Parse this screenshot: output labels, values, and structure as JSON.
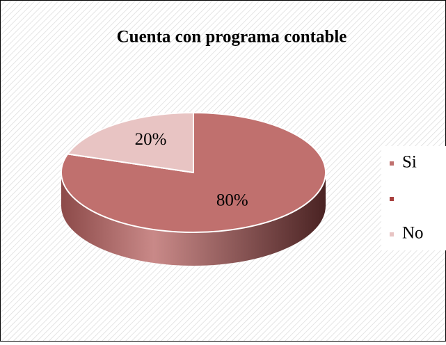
{
  "chart_data": {
    "type": "pie",
    "title": "Cuenta con programa contable",
    "categories": [
      "Si",
      null,
      "No"
    ],
    "values": [
      80,
      0,
      20
    ],
    "value_labels": [
      "80%",
      null,
      "20%"
    ],
    "colors": [
      "#c0706e",
      "#a8403e",
      "#e8c4c3"
    ],
    "legend": "right"
  }
}
